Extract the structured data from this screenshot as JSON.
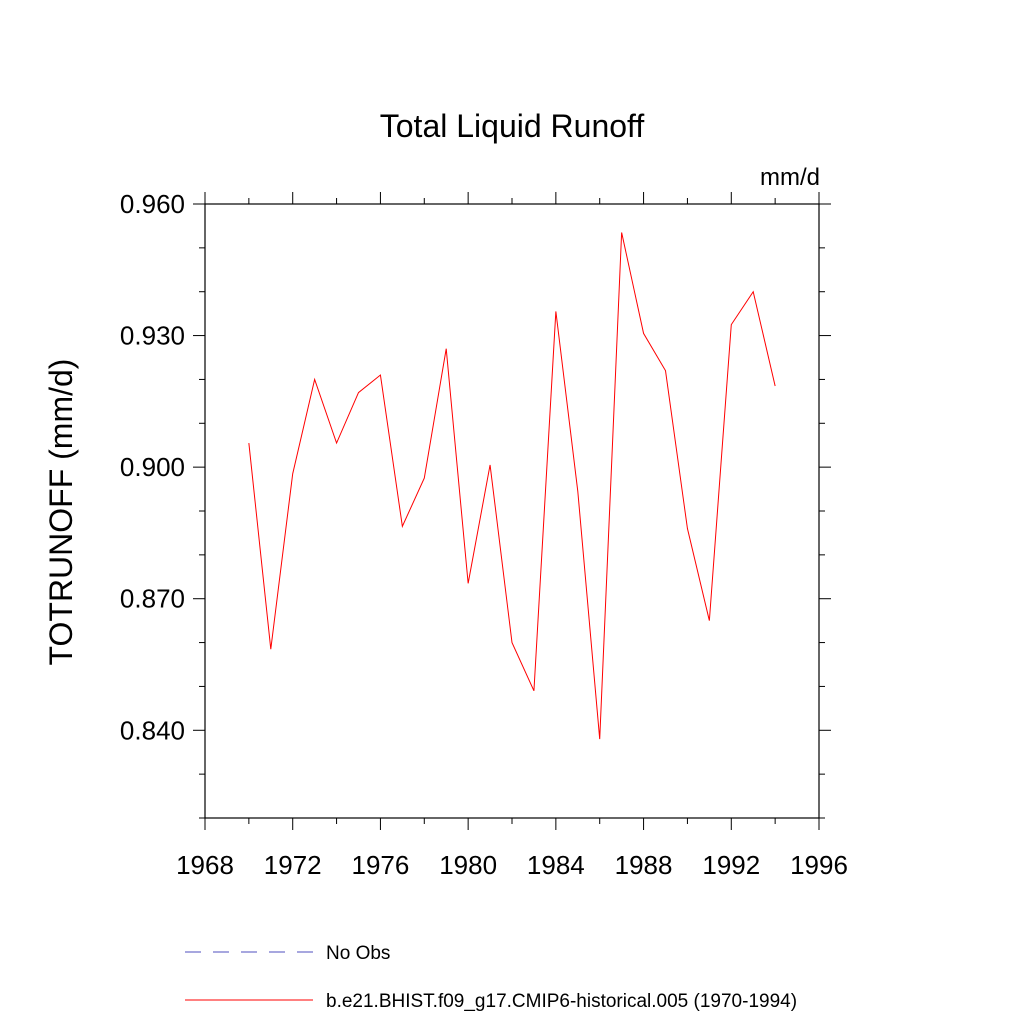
{
  "chart_data": {
    "type": "line",
    "title": "Total Liquid Runoff",
    "units": "mm/d",
    "ylabel": "TOTRUNOFF  (mm/d)",
    "xlabel": "",
    "xlim": [
      1968,
      1996
    ],
    "ylim": [
      0.82,
      0.96
    ],
    "x_ticks": [
      1968,
      1972,
      1976,
      1980,
      1984,
      1988,
      1992,
      1996
    ],
    "x_tick_labels": [
      "1968",
      "1972",
      "1976",
      "1980",
      "1984",
      "1988",
      "1992",
      "1996"
    ],
    "y_ticks": [
      0.84,
      0.87,
      0.9,
      0.93,
      0.96
    ],
    "y_tick_labels": [
      "0.840",
      "0.870",
      "0.900",
      "0.930",
      "0.960"
    ],
    "x": [
      1970,
      1971,
      1972,
      1973,
      1974,
      1975,
      1976,
      1977,
      1978,
      1979,
      1980,
      1981,
      1982,
      1983,
      1984,
      1985,
      1986,
      1987,
      1988,
      1989,
      1990,
      1991,
      1992,
      1993,
      1994
    ],
    "series": [
      {
        "name": "b.e21.BHIST.f09_g17.CMIP6-historical.005 (1970-1994)",
        "color": "#ff0000",
        "style": "solid",
        "values": [
          0.9055,
          0.8585,
          0.8985,
          0.92,
          0.9055,
          0.917,
          0.921,
          0.8865,
          0.8975,
          0.927,
          0.8735,
          0.9005,
          0.86,
          0.849,
          0.9355,
          0.8945,
          0.838,
          0.9535,
          0.9305,
          0.922,
          0.886,
          0.865,
          0.9325,
          0.94,
          0.9185
        ]
      }
    ],
    "legend": {
      "placement": "bottom",
      "entries": [
        {
          "label": "No Obs",
          "color": "#4f4fbf",
          "style": "dashed"
        },
        {
          "label": "b.e21.BHIST.f09_g17.CMIP6-historical.005 (1970-1994)",
          "color": "#ff0000",
          "style": "solid"
        }
      ]
    }
  }
}
